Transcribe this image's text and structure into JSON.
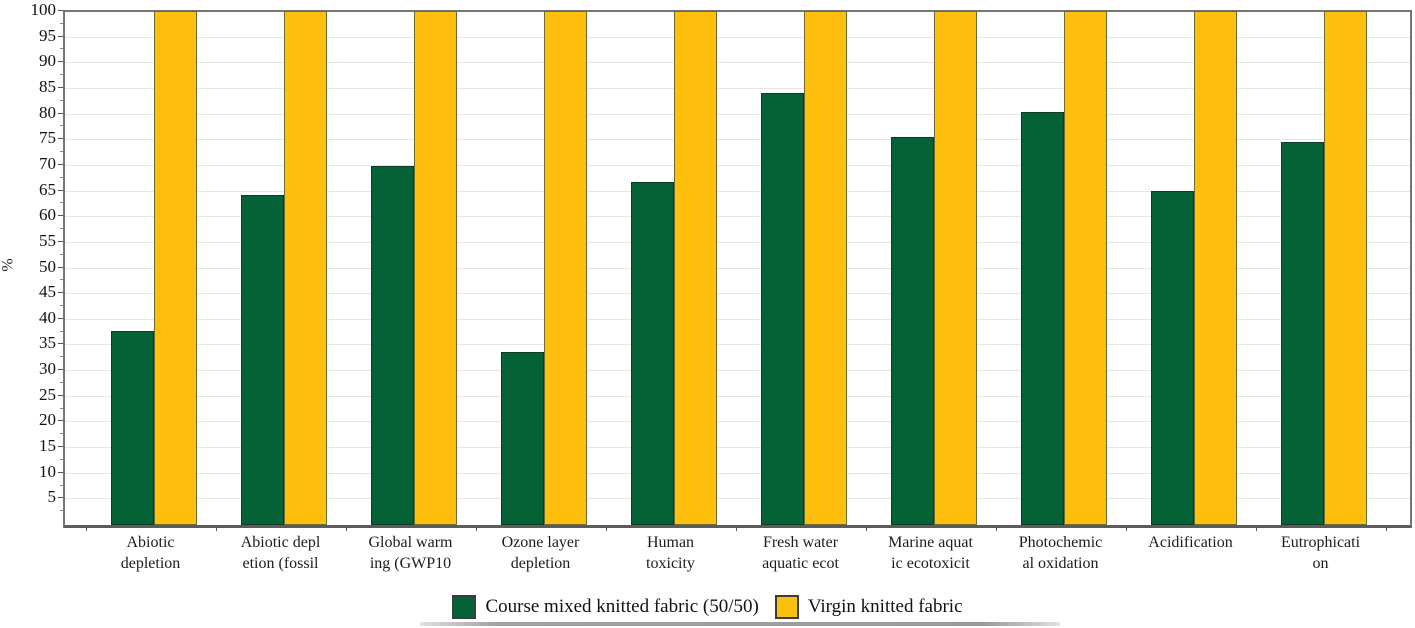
{
  "chart_data": {
    "type": "bar",
    "title": "",
    "xlabel": "",
    "ylabel": "%",
    "ylim": [
      0,
      100
    ],
    "ytick_step": 5,
    "ytick_labels": [
      5,
      10,
      15,
      20,
      25,
      30,
      35,
      40,
      45,
      50,
      55,
      60,
      65,
      70,
      75,
      80,
      85,
      90,
      95,
      100
    ],
    "grid": true,
    "legend_position": "bottom",
    "categories": [
      "Abiotic depletion",
      "Abiotic depletion (fossil",
      "Global warming (GWP10",
      "Ozone layer depletion",
      "Human toxicity",
      "Fresh water aquatic ecot",
      "Marine aquatic ecotoxicit",
      "Photochemical oxidation",
      "Acidification",
      "Eutrophication"
    ],
    "category_label_lines": [
      [
        "Abiotic",
        "depletion"
      ],
      [
        "Abiotic depl",
        "etion (fossil"
      ],
      [
        "Global warm",
        "ing (GWP10"
      ],
      [
        "Ozone layer",
        "depletion"
      ],
      [
        "Human",
        "toxicity"
      ],
      [
        "Fresh water",
        "aquatic ecot"
      ],
      [
        "Marine aquat",
        "ic ecotoxicit"
      ],
      [
        "Photochemic",
        "al oxidation"
      ],
      [
        "Acidification"
      ],
      [
        "Eutrophicati",
        "on"
      ]
    ],
    "series": [
      {
        "name": "Course mixed knitted fabric (50/50)",
        "color": "#046236",
        "border_color": "#0b3d25",
        "values": [
          37.7,
          64.2,
          69.8,
          33.5,
          66.6,
          84.0,
          75.5,
          80.3,
          65.0,
          74.5
        ]
      },
      {
        "name": "Virgin knitted fabric",
        "color": "#FFC00D",
        "border_color": "#6b6b35",
        "values": [
          100,
          100,
          100,
          100,
          100,
          100,
          100,
          100,
          100,
          100
        ]
      }
    ]
  },
  "colors": {
    "background": "#ffffff",
    "gridline": "#e9e5e5",
    "axis_frame": "#757575",
    "tick": "#555555",
    "text": "#1a1a1a"
  }
}
